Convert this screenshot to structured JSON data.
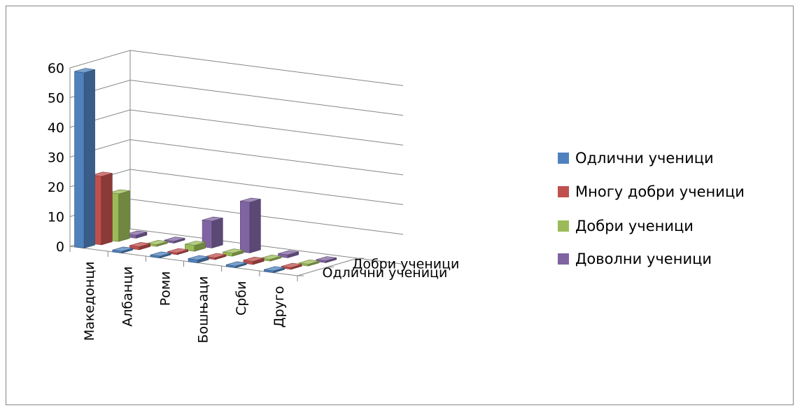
{
  "chart_data": {
    "type": "bar",
    "subtype": "3d-column",
    "title": "",
    "categories": [
      "Македонци",
      "Албанци",
      "Роми",
      "Бошњаци",
      "Срби",
      "Друго"
    ],
    "depth_labels": [
      "Добри ученици",
      "Одлични ученици"
    ],
    "yticks": [
      "0",
      "10",
      "20",
      "30",
      "40",
      "50",
      "60"
    ],
    "ylim": [
      0,
      60
    ],
    "grid": true,
    "legend_position": "right",
    "series": [
      {
        "name": "Одлични ученици",
        "color": "#4F81BD",
        "values": [
          59,
          0,
          0,
          1,
          0,
          0
        ]
      },
      {
        "name": "Многу добри ученици",
        "color": "#C0504D",
        "values": [
          23,
          1,
          0,
          0,
          1,
          0
        ]
      },
      {
        "name": "Добри ученици",
        "color": "#9BBB59",
        "values": [
          16,
          0,
          2,
          1,
          0,
          0
        ]
      },
      {
        "name": "Доволни ученици",
        "color": "#8064A2",
        "values": [
          1,
          0,
          9,
          17,
          1,
          0
        ]
      }
    ]
  }
}
